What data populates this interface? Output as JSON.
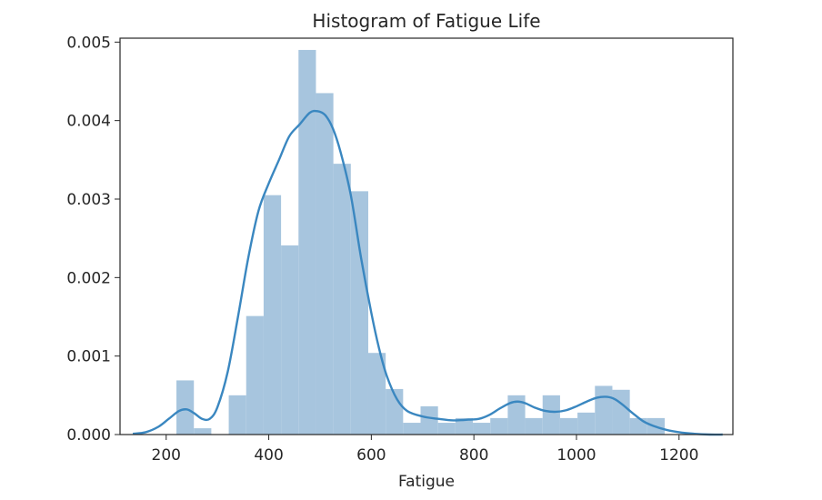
{
  "chart_data": {
    "type": "bar",
    "subtype": "histogram-with-kde",
    "title": "Histogram of Fatigue Life",
    "xlabel": "Fatigue",
    "ylabel": "",
    "xlim": [
      110,
      1305
    ],
    "ylim": [
      0,
      0.00505
    ],
    "xticks": [
      200,
      400,
      600,
      800,
      1000,
      1200
    ],
    "yticks": [
      0.0,
      0.001,
      0.002,
      0.003,
      0.004,
      0.005
    ],
    "xtick_labels": [
      "200",
      "400",
      "600",
      "800",
      "1000",
      "1200"
    ],
    "ytick_labels": [
      "0.000",
      "0.001",
      "0.002",
      "0.003",
      "0.004",
      "0.005"
    ],
    "grid": false,
    "bar_color": "#a7c5de",
    "line_color": "#3a87c0",
    "bins": [
      {
        "x0": 220,
        "x1": 254,
        "value": 0.00069
      },
      {
        "x0": 254,
        "x1": 288,
        "value": 8e-05
      },
      {
        "x0": 288,
        "x1": 322,
        "value": 0.0
      },
      {
        "x0": 322,
        "x1": 356,
        "value": 0.0005
      },
      {
        "x0": 356,
        "x1": 390,
        "value": 0.00151
      },
      {
        "x0": 390,
        "x1": 424,
        "value": 0.00305
      },
      {
        "x0": 424,
        "x1": 458,
        "value": 0.00241
      },
      {
        "x0": 458,
        "x1": 492,
        "value": 0.0049
      },
      {
        "x0": 492,
        "x1": 526,
        "value": 0.00435
      },
      {
        "x0": 526,
        "x1": 560,
        "value": 0.00345
      },
      {
        "x0": 560,
        "x1": 594,
        "value": 0.0031
      },
      {
        "x0": 594,
        "x1": 628,
        "value": 0.00104
      },
      {
        "x0": 628,
        "x1": 662,
        "value": 0.00058
      },
      {
        "x0": 662,
        "x1": 696,
        "value": 0.00015
      },
      {
        "x0": 696,
        "x1": 730,
        "value": 0.00036
      },
      {
        "x0": 730,
        "x1": 764,
        "value": 0.00015
      },
      {
        "x0": 764,
        "x1": 798,
        "value": 0.00021
      },
      {
        "x0": 798,
        "x1": 832,
        "value": 0.00015
      },
      {
        "x0": 832,
        "x1": 866,
        "value": 0.00021
      },
      {
        "x0": 866,
        "x1": 900,
        "value": 0.0005
      },
      {
        "x0": 900,
        "x1": 934,
        "value": 0.00021
      },
      {
        "x0": 934,
        "x1": 968,
        "value": 0.0005
      },
      {
        "x0": 968,
        "x1": 1002,
        "value": 0.00021
      },
      {
        "x0": 1002,
        "x1": 1036,
        "value": 0.00028
      },
      {
        "x0": 1036,
        "x1": 1070,
        "value": 0.00062
      },
      {
        "x0": 1070,
        "x1": 1104,
        "value": 0.00057
      },
      {
        "x0": 1104,
        "x1": 1138,
        "value": 0.00021
      },
      {
        "x0": 1138,
        "x1": 1172,
        "value": 0.00021
      }
    ],
    "kde": {
      "x": [
        135,
        160,
        185,
        205,
        225,
        240,
        255,
        270,
        285,
        300,
        320,
        340,
        360,
        380,
        400,
        420,
        440,
        460,
        480,
        495,
        510,
        525,
        540,
        560,
        580,
        600,
        615,
        630,
        650,
        670,
        700,
        730,
        760,
        790,
        810,
        830,
        850,
        870,
        885,
        900,
        920,
        940,
        960,
        980,
        1000,
        1020,
        1040,
        1060,
        1075,
        1090,
        1110,
        1130,
        1150,
        1175,
        1200,
        1230,
        1260,
        1285
      ],
      "y": [
        1e-05,
        3e-05,
        0.0001,
        0.0002,
        0.0003,
        0.00032,
        0.00027,
        0.0002,
        0.0002,
        0.00035,
        0.0008,
        0.0015,
        0.00225,
        0.00285,
        0.0032,
        0.0035,
        0.0038,
        0.00395,
        0.0041,
        0.00412,
        0.00407,
        0.0039,
        0.0036,
        0.00305,
        0.00225,
        0.00155,
        0.0011,
        0.00075,
        0.00045,
        0.0003,
        0.00023,
        0.0002,
        0.00018,
        0.00019,
        0.0002,
        0.00025,
        0.00033,
        0.0004,
        0.00042,
        0.0004,
        0.00034,
        0.0003,
        0.00029,
        0.00031,
        0.00036,
        0.00042,
        0.00047,
        0.00048,
        0.00045,
        0.00038,
        0.00027,
        0.00017,
        0.00011,
        6e-05,
        3e-05,
        1e-05,
        0.0,
        0.0
      ]
    }
  }
}
